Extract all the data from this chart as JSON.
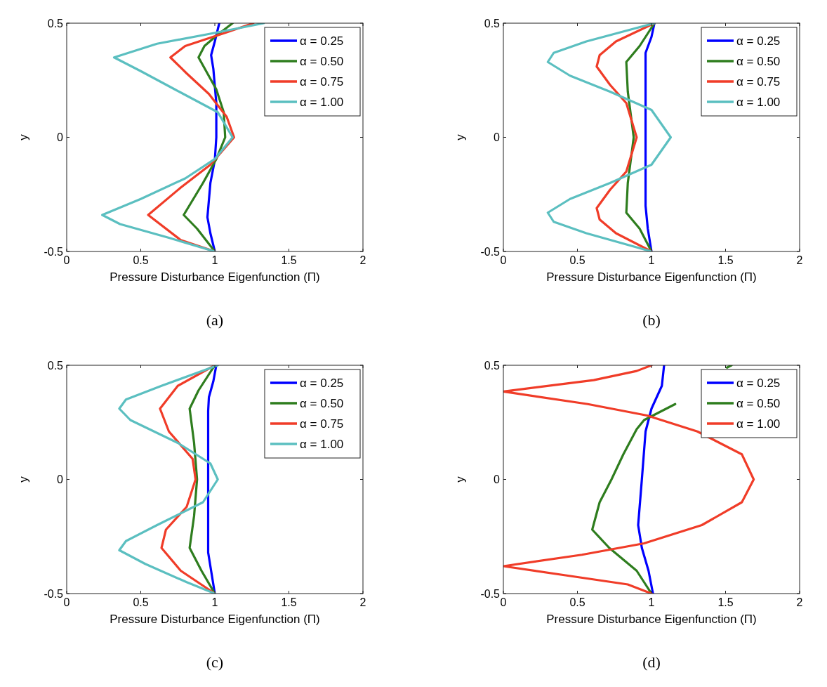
{
  "chart_data": [
    {
      "type": "line",
      "xlabel": "Pressure Disturbance Eigenfunction (Π)",
      "ylabel": "y",
      "xlim": [
        0,
        2
      ],
      "ylim": [
        -0.5,
        0.5
      ],
      "xticks": [
        0,
        0.5,
        1,
        1.5,
        2
      ],
      "yticks": [
        0.5,
        0,
        -0.5
      ],
      "legend": "top right",
      "annotations": [
        "(a)"
      ],
      "series": [
        {
          "name": "α = 0.25",
          "color": "#0000ff",
          "x": [
            1.0,
            0.97,
            0.95,
            0.97,
            1.0,
            1.01,
            1.01,
            0.99,
            0.975,
            1.0,
            1.03
          ],
          "values": [
            -0.5,
            -0.42,
            -0.35,
            -0.2,
            -0.1,
            0,
            0.15,
            0.3,
            0.36,
            0.42,
            0.5
          ]
        },
        {
          "name": "α = 0.50",
          "color": "#2e7d1e",
          "x": [
            1.0,
            0.88,
            0.79,
            0.92,
            1.01,
            1.07,
            1.06,
            1.01,
            0.89,
            0.93,
            1.02,
            1.12
          ],
          "values": [
            -0.5,
            -0.4,
            -0.34,
            -0.2,
            -0.095,
            0,
            0.11,
            0.21,
            0.35,
            0.4,
            0.45,
            0.5
          ]
        },
        {
          "name": "α = 0.75",
          "color": "#f03c28",
          "x": [
            1.0,
            0.77,
            0.55,
            0.77,
            0.97,
            1.13,
            1.08,
            0.96,
            0.81,
            0.7,
            0.8,
            1.08,
            1.26
          ],
          "values": [
            -0.5,
            -0.45,
            -0.34,
            -0.22,
            -0.12,
            0,
            0.09,
            0.19,
            0.28,
            0.35,
            0.4,
            0.46,
            0.5
          ]
        },
        {
          "name": "α = 1.00",
          "color": "#5bbfc0",
          "x": [
            1.0,
            0.69,
            0.36,
            0.24,
            0.5,
            0.8,
            1.0,
            1.12,
            1.02,
            0.73,
            0.5,
            0.32,
            0.61,
            1.02,
            1.33
          ],
          "values": [
            -0.5,
            -0.44,
            -0.38,
            -0.34,
            -0.27,
            -0.18,
            -0.095,
            0,
            0.11,
            0.21,
            0.29,
            0.35,
            0.41,
            0.46,
            0.5
          ]
        }
      ]
    },
    {
      "type": "line",
      "xlabel": "Pressure Disturbance Eigenfunction (Π)",
      "ylabel": "y",
      "xlim": [
        0,
        2
      ],
      "ylim": [
        -0.5,
        0.5
      ],
      "xticks": [
        0,
        0.5,
        1,
        1.5,
        2
      ],
      "yticks": [
        0.5,
        0,
        -0.5
      ],
      "legend": "top right",
      "annotations": [
        "(b)"
      ],
      "series": [
        {
          "name": "α = 0.25",
          "color": "#0000ff",
          "x": [
            1.0,
            0.975,
            0.96,
            0.96,
            0.96,
            0.96,
            1.0,
            1.02
          ],
          "values": [
            -0.5,
            -0.4,
            -0.3,
            0,
            0.3,
            0.37,
            0.44,
            0.5
          ]
        },
        {
          "name": "α = 0.50",
          "color": "#2e7d1e",
          "x": [
            1.0,
            0.92,
            0.83,
            0.84,
            0.88,
            0.84,
            0.83,
            0.92,
            1.02
          ],
          "values": [
            -0.5,
            -0.4,
            -0.33,
            -0.2,
            0,
            0.2,
            0.33,
            0.4,
            0.5
          ]
        },
        {
          "name": "α = 0.75",
          "color": "#f03c28",
          "x": [
            1.0,
            0.76,
            0.65,
            0.63,
            0.72,
            0.83,
            0.9,
            0.83,
            0.72,
            0.63,
            0.65,
            0.76,
            1.02
          ],
          "values": [
            -0.5,
            -0.42,
            -0.36,
            -0.31,
            -0.23,
            -0.15,
            0,
            0.15,
            0.23,
            0.31,
            0.36,
            0.42,
            0.5
          ]
        },
        {
          "name": "α = 1.00",
          "color": "#5bbfc0",
          "x": [
            1.0,
            0.56,
            0.34,
            0.3,
            0.45,
            0.72,
            1.0,
            1.13,
            1.0,
            0.72,
            0.45,
            0.3,
            0.34,
            0.56,
            1.02
          ],
          "values": [
            -0.5,
            -0.42,
            -0.37,
            -0.33,
            -0.27,
            -0.2,
            -0.12,
            0,
            0.12,
            0.2,
            0.27,
            0.33,
            0.37,
            0.42,
            0.5
          ]
        }
      ]
    },
    {
      "type": "line",
      "xlabel": "Pressure Disturbance Eigenfunction (Π)",
      "ylabel": "y",
      "xlim": [
        0,
        2
      ],
      "ylim": [
        -0.5,
        0.5
      ],
      "xticks": [
        0,
        0.5,
        1,
        1.5,
        2
      ],
      "yticks": [
        0.5,
        0,
        -0.5
      ],
      "legend": "top right",
      "annotations": [
        "(c)"
      ],
      "series": [
        {
          "name": "α = 0.25",
          "color": "#0000ff",
          "x": [
            1.0,
            0.98,
            0.955,
            0.955,
            0.955,
            0.96,
            0.99,
            1.01
          ],
          "values": [
            -0.5,
            -0.42,
            -0.32,
            0,
            0.3,
            0.36,
            0.43,
            0.5
          ]
        },
        {
          "name": "α = 0.50",
          "color": "#2e7d1e",
          "x": [
            1.0,
            0.91,
            0.83,
            0.86,
            0.88,
            0.86,
            0.83,
            0.89,
            1.0
          ],
          "values": [
            -0.5,
            -0.4,
            -0.3,
            -0.16,
            0,
            0.16,
            0.31,
            0.39,
            0.5
          ]
        },
        {
          "name": "α = 0.75",
          "color": "#f03c28",
          "x": [
            1.0,
            0.77,
            0.64,
            0.67,
            0.81,
            0.87,
            0.85,
            0.69,
            0.63,
            0.75,
            1.0
          ],
          "values": [
            -0.5,
            -0.4,
            -0.3,
            -0.22,
            -0.12,
            0,
            0.09,
            0.21,
            0.31,
            0.41,
            0.5
          ]
        },
        {
          "name": "α = 1.00",
          "color": "#5bbfc0",
          "x": [
            1.0,
            0.81,
            0.53,
            0.355,
            0.4,
            0.61,
            0.92,
            1.02,
            0.97,
            0.75,
            0.43,
            0.355,
            0.4,
            0.64,
            1.02
          ],
          "values": [
            -0.5,
            -0.45,
            -0.37,
            -0.31,
            -0.27,
            -0.2,
            -0.1,
            0,
            0.07,
            0.16,
            0.26,
            0.31,
            0.35,
            0.41,
            0.5
          ]
        }
      ]
    },
    {
      "type": "line",
      "xlabel": "Pressure Disturbance Eigenfunction (Π)",
      "ylabel": "y",
      "xlim": [
        0,
        2
      ],
      "ylim": [
        -0.5,
        0.5
      ],
      "xticks": [
        0,
        0.5,
        1,
        1.5,
        2
      ],
      "yticks": [
        0.5,
        0,
        -0.5
      ],
      "legend": "top right",
      "annotations": [
        "(d)"
      ],
      "series": [
        {
          "name": "α = 0.25",
          "color": "#0000ff",
          "x": [
            1.01,
            0.98,
            0.935,
            0.91,
            0.935,
            0.96,
            1.0,
            1.07,
            1.085
          ],
          "values": [
            -0.5,
            -0.4,
            -0.3,
            -0.2,
            0,
            0.21,
            0.31,
            0.41,
            0.5
          ]
        },
        {
          "name": "α = 0.50",
          "color": "#2e7d1e",
          "x": [
            1.0,
            0.9,
            0.715,
            0.6,
            0.65,
            0.73,
            0.81,
            0.9,
            0.95,
            1.16,
            1.36,
            1.51,
            1.54
          ],
          "values": [
            -0.5,
            -0.4,
            -0.3,
            -0.22,
            -0.1,
            0,
            0.11,
            0.22,
            0.26,
            0.33,
            null,
            0.49,
            0.5
          ]
        },
        {
          "name": "α = 1.00",
          "color": "#f03c28",
          "x": [
            1.0,
            0.84,
            0.42,
            0,
            0.53,
            0.95,
            1.34,
            1.61,
            1.69,
            1.61,
            1.31,
            0.97,
            0.57,
            0,
            0.61,
            0.9,
            1.0
          ],
          "values": [
            -0.5,
            -0.46,
            -0.42,
            -0.38,
            -0.33,
            -0.28,
            -0.2,
            -0.1,
            0,
            0.11,
            0.21,
            0.28,
            0.33,
            0.385,
            0.435,
            0.475,
            0.5
          ]
        }
      ]
    }
  ]
}
